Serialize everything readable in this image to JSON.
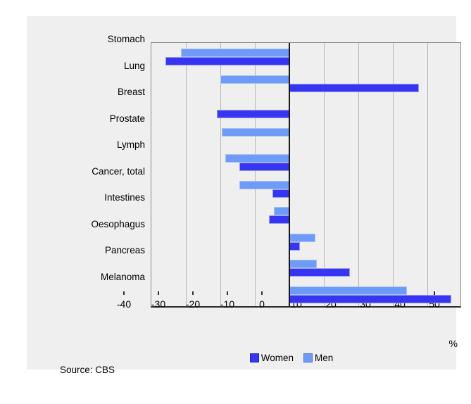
{
  "chart_data": {
    "type": "bar",
    "orientation": "horizontal",
    "title": "",
    "categories": [
      "Stomach",
      "Lung",
      "Breast",
      "Prostate",
      "Lymph",
      "Cancer, total",
      "Intestines",
      "Oesophagus",
      "Pancreas",
      "Melanoma"
    ],
    "series": [
      {
        "name": "Women",
        "color": "#3535f2",
        "border_color": "#9a9aee",
        "values": [
          -36,
          37.5,
          -21,
          null,
          -14.5,
          -5,
          -6,
          3,
          17.5,
          47
        ]
      },
      {
        "name": "Men",
        "color": "#6d9bf7",
        "border_color": "#a9c2f3",
        "values": [
          -31.5,
          -20,
          null,
          -19.5,
          -18.5,
          -14.5,
          -4.5,
          7.5,
          8,
          34
        ]
      }
    ],
    "xlim": [
      -40,
      50
    ],
    "xticks": [
      -40,
      -30,
      -20,
      -10,
      0,
      10,
      20,
      30,
      40,
      50
    ],
    "xtick_labels": [
      "-40",
      "-30",
      "-20",
      "-10",
      "0",
      "10",
      "20",
      "30",
      "40",
      "50"
    ],
    "unit_label": "%",
    "legend_position": "bottom",
    "grid": "vertical"
  },
  "source": {
    "label": "Source: CBS"
  },
  "colors": {
    "page_bg": "#ffffff",
    "panel_bg": "#efefef",
    "gridline": "#b5b5b5",
    "plot_border": "#8a8a8a",
    "zero_line": "#1a1a1a",
    "tick": "#333333",
    "text": "#000000"
  }
}
